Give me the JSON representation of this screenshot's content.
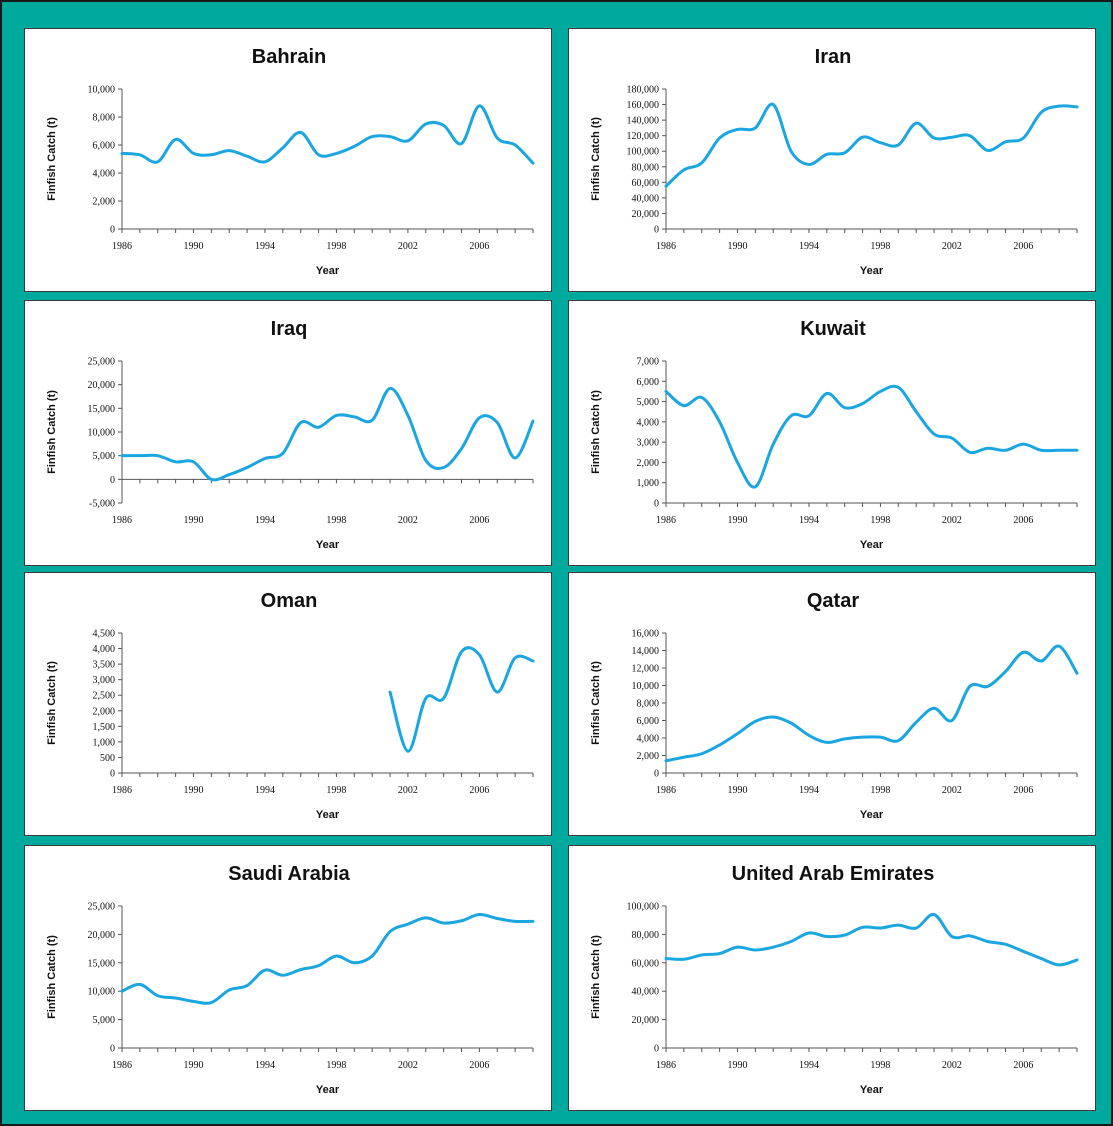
{
  "colors": {
    "frame": "#00a99d",
    "line": "#1aa6e0"
  },
  "chart_data": [
    {
      "type": "line",
      "title": "Bahrain",
      "xlabel": "Year",
      "ylabel": "Finfish Catch (t)",
      "xlim": [
        1986,
        2009
      ],
      "yticks": [
        0,
        2000,
        4000,
        6000,
        8000,
        10000
      ],
      "ytick_labels": [
        "0",
        "2,000",
        "4,000",
        "6,000",
        "8,000",
        "10,000"
      ],
      "xticks": [
        1986,
        1990,
        1994,
        1998,
        2002,
        2006
      ],
      "xtick_labels": [
        "1986",
        "1990",
        "1994",
        "1998",
        "2002",
        "2006"
      ],
      "series": [
        {
          "x": [
            1986,
            1987,
            1988,
            1989,
            1990,
            1991,
            1992,
            1993,
            1994,
            1995,
            1996,
            1997,
            1998,
            1999,
            2000,
            2001,
            2002,
            2003,
            2004,
            2005,
            2006,
            2007,
            2008,
            2009
          ],
          "y": [
            5400,
            5300,
            4800,
            6400,
            5400,
            5300,
            5600,
            5200,
            4800,
            5800,
            6900,
            5300,
            5400,
            5900,
            6600,
            6600,
            6300,
            7500,
            7400,
            6100,
            8800,
            6500,
            6000,
            4700
          ]
        }
      ]
    },
    {
      "type": "line",
      "title": "Iran",
      "xlabel": "Year",
      "ylabel": "Finfish Catch (t)",
      "xlim": [
        1986,
        2009
      ],
      "yticks": [
        0,
        20000,
        40000,
        60000,
        80000,
        100000,
        120000,
        140000,
        160000,
        180000
      ],
      "ytick_labels": [
        "0",
        "20,000",
        "40,000",
        "60,000",
        "80,000",
        "100,000",
        "120,000",
        "140,000",
        "160,000",
        "180,000"
      ],
      "xticks": [
        1986,
        1990,
        1994,
        1998,
        2002,
        2006
      ],
      "xtick_labels": [
        "1986",
        "1990",
        "1994",
        "1998",
        "2002",
        "2006"
      ],
      "series": [
        {
          "x": [
            1986,
            1987,
            1988,
            1989,
            1990,
            1991,
            1992,
            1993,
            1994,
            1995,
            1996,
            1997,
            1998,
            1999,
            2000,
            2001,
            2002,
            2003,
            2004,
            2005,
            2006,
            2007,
            2008,
            2009
          ],
          "y": [
            55000,
            76000,
            85000,
            117000,
            128000,
            130000,
            160000,
            100000,
            83000,
            96000,
            98000,
            118000,
            111000,
            108000,
            136000,
            117000,
            118000,
            120000,
            101000,
            112000,
            117000,
            150000,
            158000,
            157000
          ]
        }
      ]
    },
    {
      "type": "line",
      "title": "Iraq",
      "xlabel": "Year",
      "ylabel": "Finfish Catch (t)",
      "xlim": [
        1986,
        2009
      ],
      "yticks": [
        -5000,
        0,
        5000,
        10000,
        15000,
        20000,
        25000
      ],
      "ytick_labels": [
        "-5,000",
        "0",
        "5,000",
        "10,000",
        "15,000",
        "20,000",
        "25,000"
      ],
      "xticks": [
        1986,
        1990,
        1994,
        1998,
        2002,
        2006
      ],
      "xtick_labels": [
        "1986",
        "1990",
        "1994",
        "1998",
        "2002",
        "2006"
      ],
      "series": [
        {
          "x": [
            1986,
            1987,
            1988,
            1989,
            1990,
            1991,
            1992,
            1993,
            1994,
            1995,
            1996,
            1997,
            1998,
            1999,
            2000,
            2001,
            2002,
            2003,
            2004,
            2005,
            2006,
            2007,
            2008,
            2009
          ],
          "y": [
            5000,
            5000,
            5000,
            3700,
            3700,
            0,
            1000,
            2500,
            4400,
            5500,
            12000,
            11000,
            13500,
            13200,
            12500,
            19200,
            13500,
            4000,
            2500,
            6500,
            13000,
            12000,
            4500,
            12300
          ]
        }
      ]
    },
    {
      "type": "line",
      "title": "Kuwait",
      "xlabel": "Year",
      "ylabel": "Finfish Catch (t)",
      "xlim": [
        1986,
        2009
      ],
      "yticks": [
        0,
        1000,
        2000,
        3000,
        4000,
        5000,
        6000,
        7000
      ],
      "ytick_labels": [
        "0",
        "1,000",
        "2,000",
        "3,000",
        "4,000",
        "5,000",
        "6,000",
        "7,000"
      ],
      "xticks": [
        1986,
        1990,
        1994,
        1998,
        2002,
        2006
      ],
      "xtick_labels": [
        "1986",
        "1990",
        "1994",
        "1998",
        "2002",
        "2006"
      ],
      "series": [
        {
          "x": [
            1986,
            1987,
            1988,
            1989,
            1990,
            1991,
            1992,
            1993,
            1994,
            1995,
            1996,
            1997,
            1998,
            1999,
            2000,
            2001,
            2002,
            2003,
            2004,
            2005,
            2006,
            2007,
            2008,
            2009
          ],
          "y": [
            5500,
            4800,
            5200,
            4000,
            2000,
            800,
            2900,
            4300,
            4300,
            5400,
            4700,
            4900,
            5500,
            5700,
            4500,
            3400,
            3200,
            2500,
            2700,
            2600,
            2900,
            2600,
            2600,
            2600
          ]
        }
      ]
    },
    {
      "type": "line",
      "title": "Oman",
      "xlabel": "Year",
      "ylabel": "Finfish Catch (t)",
      "xlim": [
        1986,
        2009
      ],
      "yticks": [
        0,
        500,
        1000,
        1500,
        2000,
        2500,
        3000,
        3500,
        4000,
        4500
      ],
      "ytick_labels": [
        "0",
        "500",
        "1,000",
        "1,500",
        "2,000",
        "2,500",
        "3,000",
        "3,500",
        "4,000",
        "4,500"
      ],
      "xticks": [
        1986,
        1990,
        1994,
        1998,
        2002,
        2006
      ],
      "xtick_labels": [
        "1986",
        "1990",
        "1994",
        "1998",
        "2002",
        "2006"
      ],
      "series": [
        {
          "x": [
            2001,
            2002,
            2003,
            2004,
            2005,
            2006,
            2007,
            2008,
            2009
          ],
          "y": [
            2600,
            700,
            2400,
            2400,
            3900,
            3800,
            2600,
            3700,
            3600
          ]
        }
      ]
    },
    {
      "type": "line",
      "title": "Qatar",
      "xlabel": "Year",
      "ylabel": "Finfish Catch (t)",
      "xlim": [
        1986,
        2009
      ],
      "yticks": [
        0,
        2000,
        4000,
        6000,
        8000,
        10000,
        12000,
        14000,
        16000
      ],
      "ytick_labels": [
        "0",
        "2,000",
        "4,000",
        "6,000",
        "8,000",
        "10,000",
        "12,000",
        "14,000",
        "16,000"
      ],
      "xticks": [
        1986,
        1990,
        1994,
        1998,
        2002,
        2006
      ],
      "xtick_labels": [
        "1986",
        "1990",
        "1994",
        "1998",
        "2002",
        "2006"
      ],
      "series": [
        {
          "x": [
            1986,
            1987,
            1988,
            1989,
            1990,
            1991,
            1992,
            1993,
            1994,
            1995,
            1996,
            1997,
            1998,
            1999,
            2000,
            2001,
            2002,
            2003,
            2004,
            2005,
            2006,
            2007,
            2008,
            2009
          ],
          "y": [
            1400,
            1800,
            2200,
            3200,
            4500,
            5900,
            6400,
            5700,
            4300,
            3500,
            3900,
            4100,
            4100,
            3700,
            5800,
            7400,
            6000,
            9900,
            9900,
            11600,
            13800,
            12800,
            14500,
            11400
          ]
        }
      ]
    },
    {
      "type": "line",
      "title": "Saudi Arabia",
      "xlabel": "Year",
      "ylabel": "Finfish Catch (t)",
      "xlim": [
        1986,
        2009
      ],
      "yticks": [
        0,
        5000,
        10000,
        15000,
        20000,
        25000
      ],
      "ytick_labels": [
        "0",
        "5,000",
        "10,000",
        "15,000",
        "20,000",
        "25,000"
      ],
      "xticks": [
        1986,
        1990,
        1994,
        1998,
        2002,
        2006
      ],
      "xtick_labels": [
        "1986",
        "1990",
        "1994",
        "1998",
        "2002",
        "2006"
      ],
      "series": [
        {
          "x": [
            1986,
            1987,
            1988,
            1989,
            1990,
            1991,
            1992,
            1993,
            1994,
            1995,
            1996,
            1997,
            1998,
            1999,
            2000,
            2001,
            2002,
            2003,
            2004,
            2005,
            2006,
            2007,
            2008,
            2009
          ],
          "y": [
            10000,
            11200,
            9200,
            8800,
            8200,
            8000,
            10200,
            11000,
            13700,
            12800,
            13800,
            14500,
            16200,
            15000,
            16200,
            20500,
            21800,
            22900,
            22000,
            22400,
            23500,
            22800,
            22300,
            22300
          ]
        }
      ]
    },
    {
      "type": "line",
      "title": "United Arab Emirates",
      "xlabel": "Year",
      "ylabel": "Finfish Catch (t)",
      "xlim": [
        1986,
        2009
      ],
      "yticks": [
        0,
        20000,
        40000,
        60000,
        80000,
        100000
      ],
      "ytick_labels": [
        "0",
        "20,000",
        "40,000",
        "60,000",
        "80,000",
        "100,000"
      ],
      "xticks": [
        1986,
        1990,
        1994,
        1998,
        2002,
        2006
      ],
      "xtick_labels": [
        "1986",
        "1990",
        "1994",
        "1998",
        "2002",
        "2006"
      ],
      "series": [
        {
          "x": [
            1986,
            1987,
            1988,
            1989,
            1990,
            1991,
            1992,
            1993,
            1994,
            1995,
            1996,
            1997,
            1998,
            1999,
            2000,
            2001,
            2002,
            2003,
            2004,
            2005,
            2006,
            2007,
            2008,
            2009
          ],
          "y": [
            63000,
            62500,
            65500,
            66500,
            71000,
            69000,
            71000,
            75000,
            81000,
            78500,
            79500,
            85000,
            84500,
            86500,
            84500,
            94000,
            78500,
            79000,
            75000,
            73000,
            68000,
            63000,
            58500,
            62000
          ]
        }
      ]
    }
  ]
}
